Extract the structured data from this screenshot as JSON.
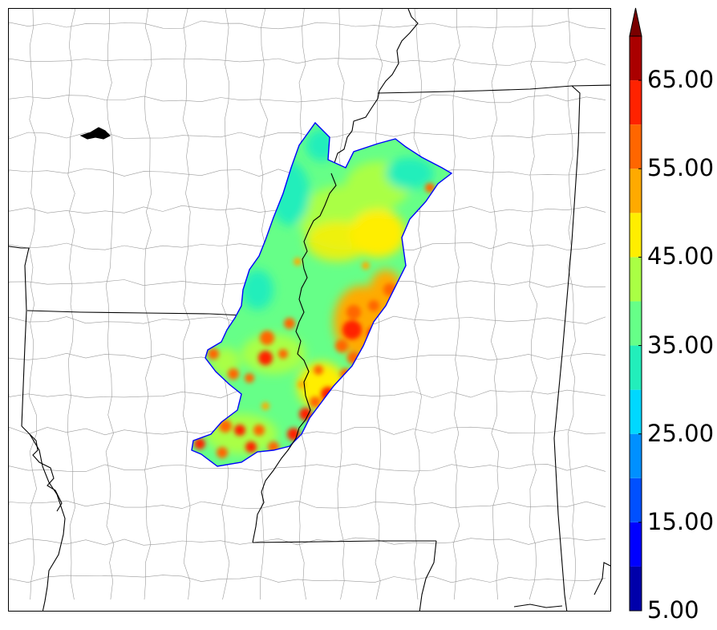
{
  "colorbar": {
    "levels": [
      5,
      10,
      15,
      20,
      25,
      30,
      35,
      40,
      45,
      50,
      55,
      60,
      65,
      70
    ],
    "colors": [
      "#0000aa",
      "#0000ff",
      "#0050ff",
      "#0090ff",
      "#00d8ff",
      "#22eebb",
      "#66ff88",
      "#aaff44",
      "#ffee00",
      "#ffaa00",
      "#ff6600",
      "#ff2200",
      "#aa0000"
    ],
    "extend_color": "#7a0000",
    "tick_labels": [
      "5.00",
      "15.00",
      "25.00",
      "35.00",
      "45.00",
      "55.00",
      "65.00"
    ],
    "tick_values": [
      5,
      15,
      25,
      35,
      45,
      55,
      65
    ]
  },
  "map": {
    "state_border_color": "#000000",
    "county_border_color": "#9a9a9a",
    "field_outline_color": "#0000ff"
  }
}
